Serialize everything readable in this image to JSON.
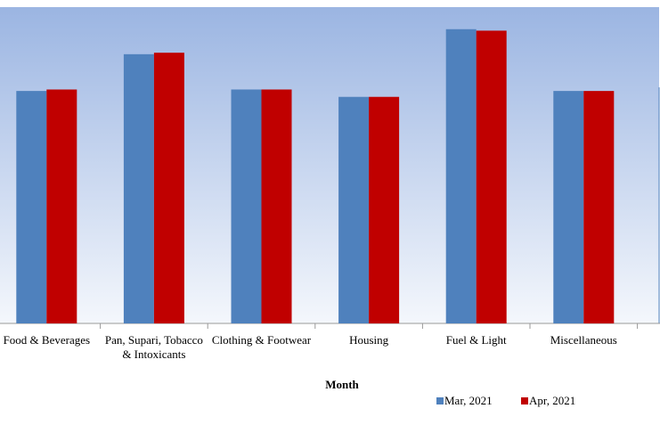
{
  "chart_data": {
    "type": "bar",
    "x_label": "Month",
    "categories": [
      "Food & Beverages",
      "Pan, Supari, Tobacco & Intoxicants",
      "Clothing & Footwear",
      "Housing",
      "Fuel & Light",
      "Miscellaneous"
    ],
    "series": [
      {
        "name": "Mar, 2021",
        "color": "#4f81bd",
        "values": [
          158,
          183,
          159,
          154,
          200,
          158
        ]
      },
      {
        "name": "Apr, 2021",
        "color": "#c00000",
        "values": [
          159,
          184,
          159,
          154,
          199,
          158
        ]
      }
    ],
    "ylim": [
      0,
      215
    ],
    "legend": "bottom"
  }
}
